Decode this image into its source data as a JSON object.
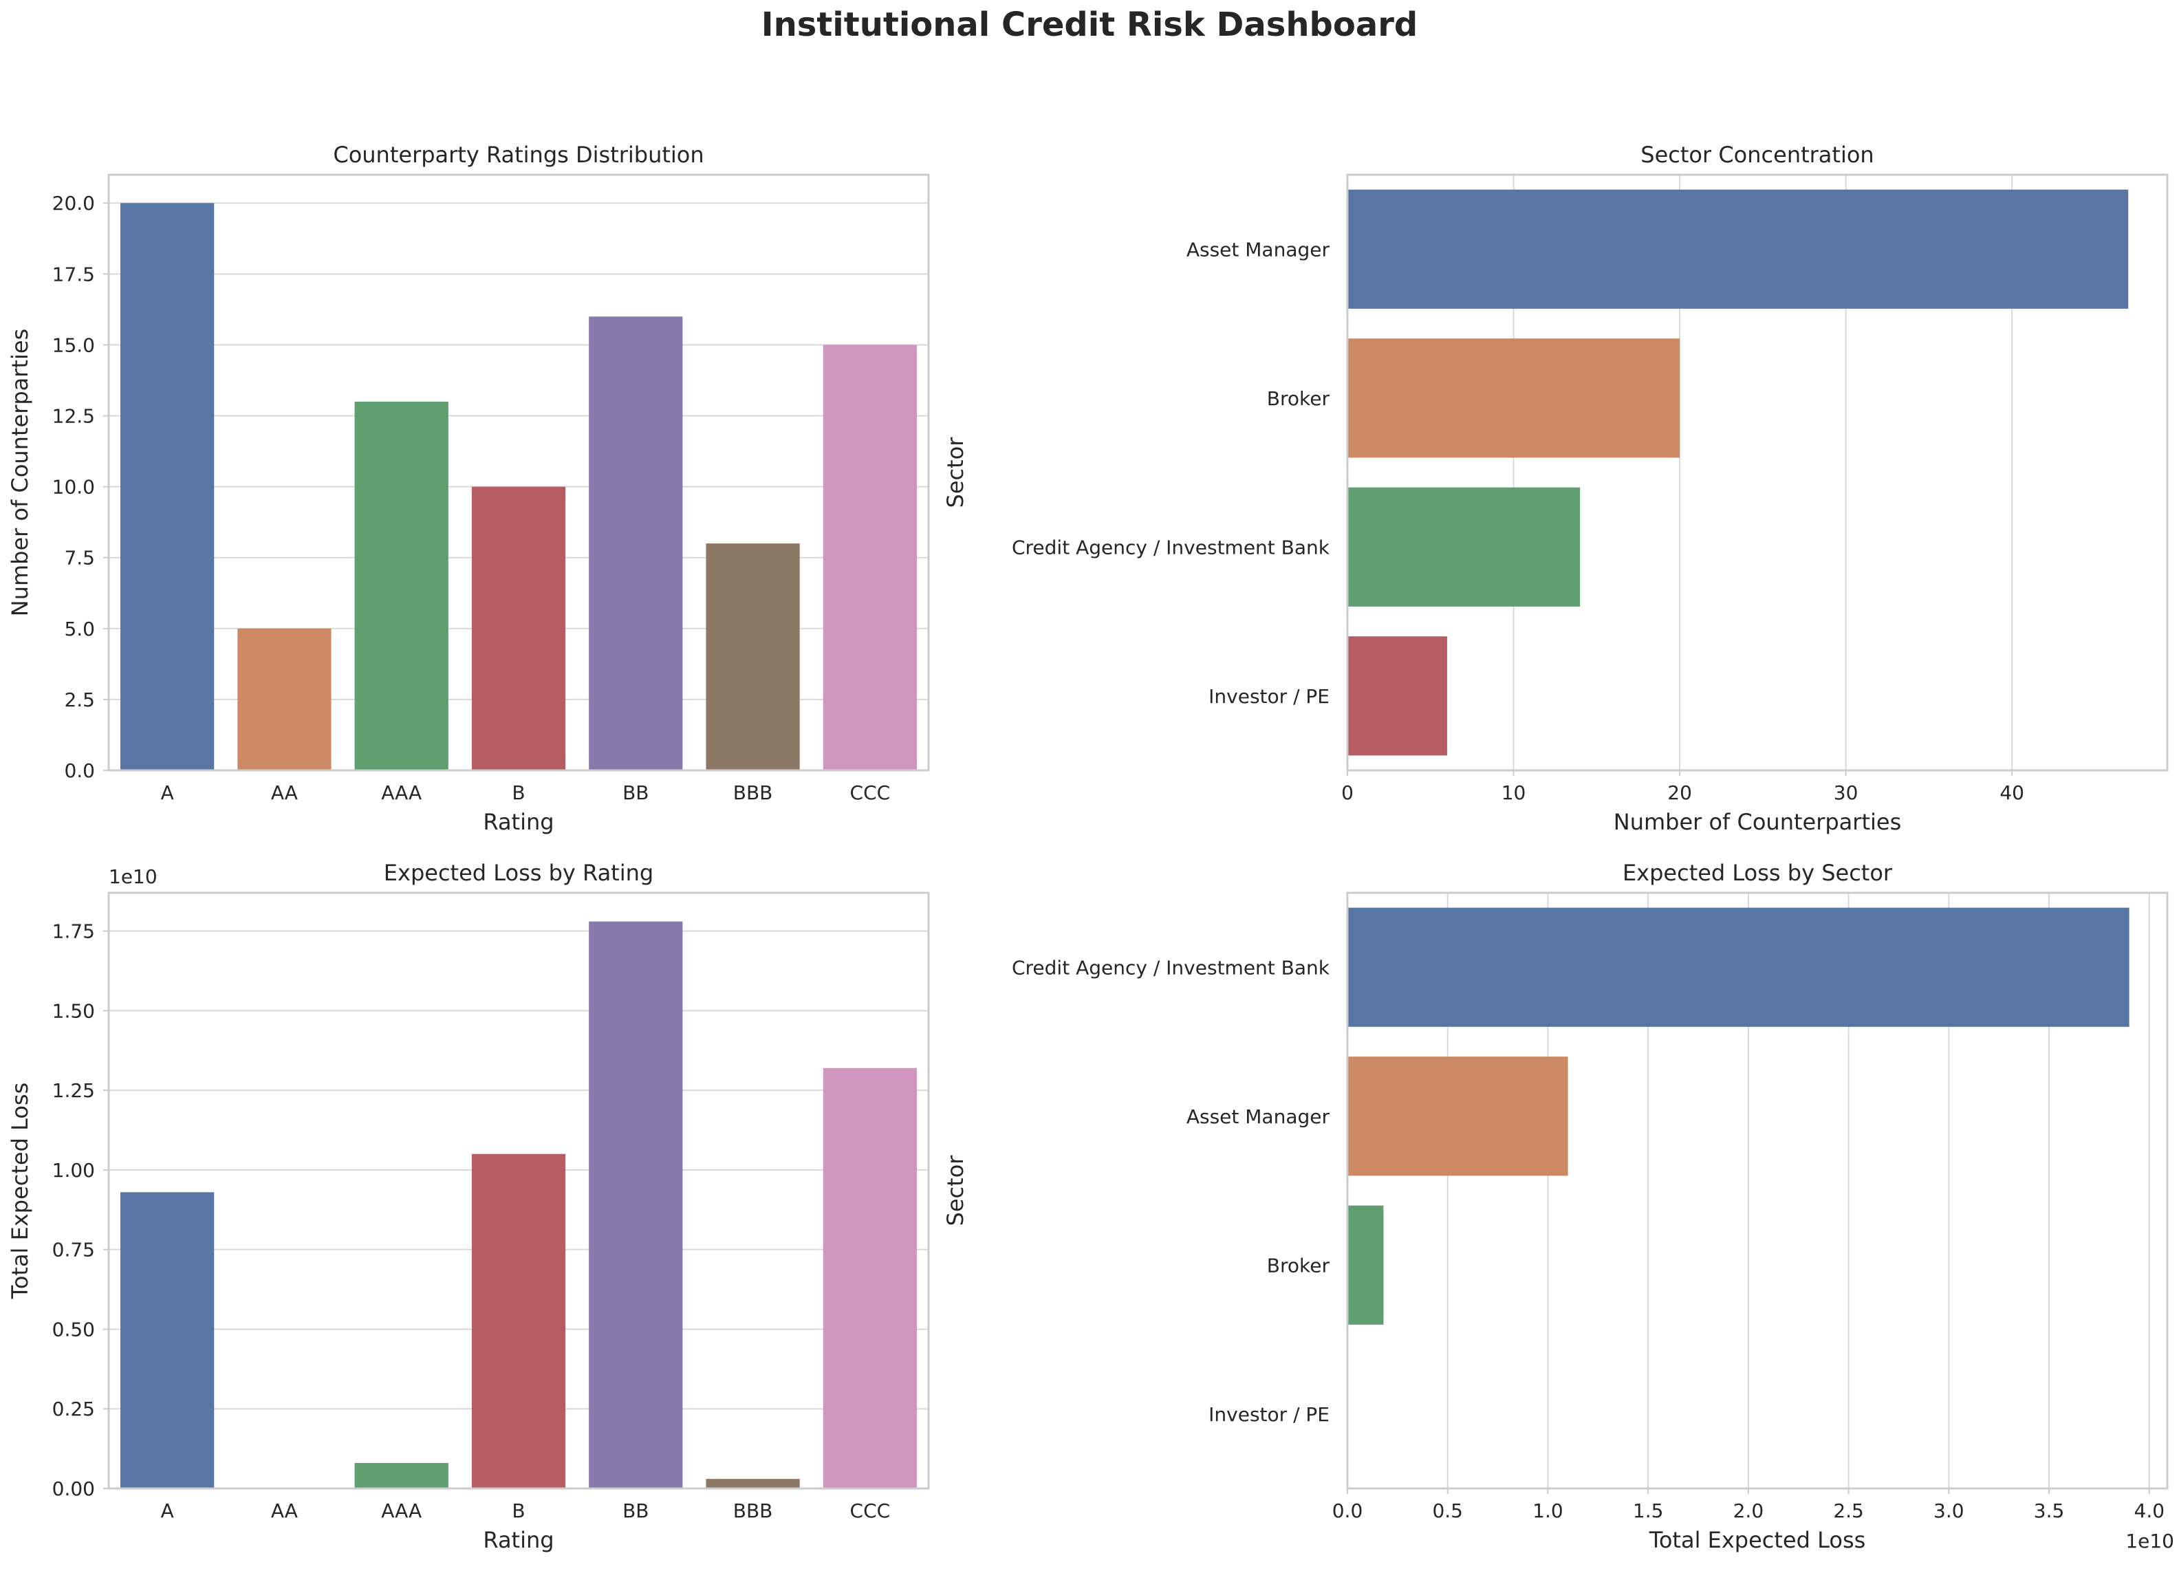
{
  "title": "Institutional Credit Risk Dashboard",
  "colors": [
    "#5975a4",
    "#cc8963",
    "#5f9e6e",
    "#b55d60",
    "#857aab",
    "#8d7866",
    "#d095bf"
  ],
  "chart_data": [
    {
      "type": "bar",
      "orientation": "vertical",
      "title": "Counterparty Ratings Distribution",
      "xlabel": "Rating",
      "ylabel": "Number of Counterparties",
      "categories": [
        "A",
        "AA",
        "AAA",
        "B",
        "BB",
        "BBB",
        "CCC"
      ],
      "values": [
        20,
        5,
        13,
        10,
        16,
        8,
        15
      ],
      "ylim": [
        0,
        21
      ],
      "ticks": [
        0,
        2.5,
        5,
        7.5,
        10,
        12.5,
        15,
        17.5,
        20
      ],
      "tick_labels": [
        "0.0",
        "2.5",
        "5.0",
        "7.5",
        "10.0",
        "12.5",
        "15.0",
        "17.5",
        "20.0"
      ],
      "offset_label": "",
      "grid": true
    },
    {
      "type": "bar",
      "orientation": "horizontal",
      "title": "Sector Concentration",
      "xlabel": "Number of Counterparties",
      "ylabel": "Sector",
      "categories": [
        "Asset Manager",
        "Broker",
        "Credit Agency / Investment Bank",
        "Investor / PE"
      ],
      "values": [
        47,
        20,
        14,
        6
      ],
      "xlim": [
        0,
        49.35
      ],
      "ticks": [
        0,
        10,
        20,
        30,
        40
      ],
      "tick_labels": [
        "0",
        "10",
        "20",
        "30",
        "40"
      ],
      "offset_label": "",
      "grid": true
    },
    {
      "type": "bar",
      "orientation": "vertical",
      "title": "Expected Loss by Rating",
      "xlabel": "Rating",
      "ylabel": "Total Expected Loss",
      "categories": [
        "A",
        "AA",
        "AAA",
        "B",
        "BB",
        "BBB",
        "CCC"
      ],
      "values": [
        9300000000.0,
        0,
        800000000.0,
        10500000000.0,
        17800000000.0,
        300000000.0,
        13200000000.0
      ],
      "ylim": [
        0,
        18700000000.0
      ],
      "ticks": [
        0,
        2500000000.0,
        5000000000.0,
        7500000000.0,
        10000000000.0,
        12500000000.0,
        15000000000.0,
        17500000000.0
      ],
      "tick_labels": [
        "0.00",
        "0.25",
        "0.50",
        "0.75",
        "1.00",
        "1.25",
        "1.50",
        "1.75"
      ],
      "offset_label": "1e10",
      "grid": true
    },
    {
      "type": "bar",
      "orientation": "horizontal",
      "title": "Expected Loss by Sector",
      "xlabel": "Total Expected Loss",
      "ylabel": "Sector",
      "categories": [
        "Credit Agency / Investment Bank",
        "Asset Manager",
        "Broker",
        "Investor / PE"
      ],
      "values": [
        39000000000.0,
        11000000000.0,
        1800000000.0,
        0
      ],
      "xlim": [
        0,
        40900000000.0
      ],
      "ticks": [
        0,
        5000000000.0,
        10000000000.0,
        15000000000.0,
        20000000000.0,
        25000000000.0,
        30000000000.0,
        35000000000.0,
        40000000000.0
      ],
      "tick_labels": [
        "0.0",
        "0.5",
        "1.0",
        "1.5",
        "2.0",
        "2.5",
        "3.0",
        "3.5",
        "4.0"
      ],
      "offset_label": "1e10",
      "grid": true
    }
  ]
}
